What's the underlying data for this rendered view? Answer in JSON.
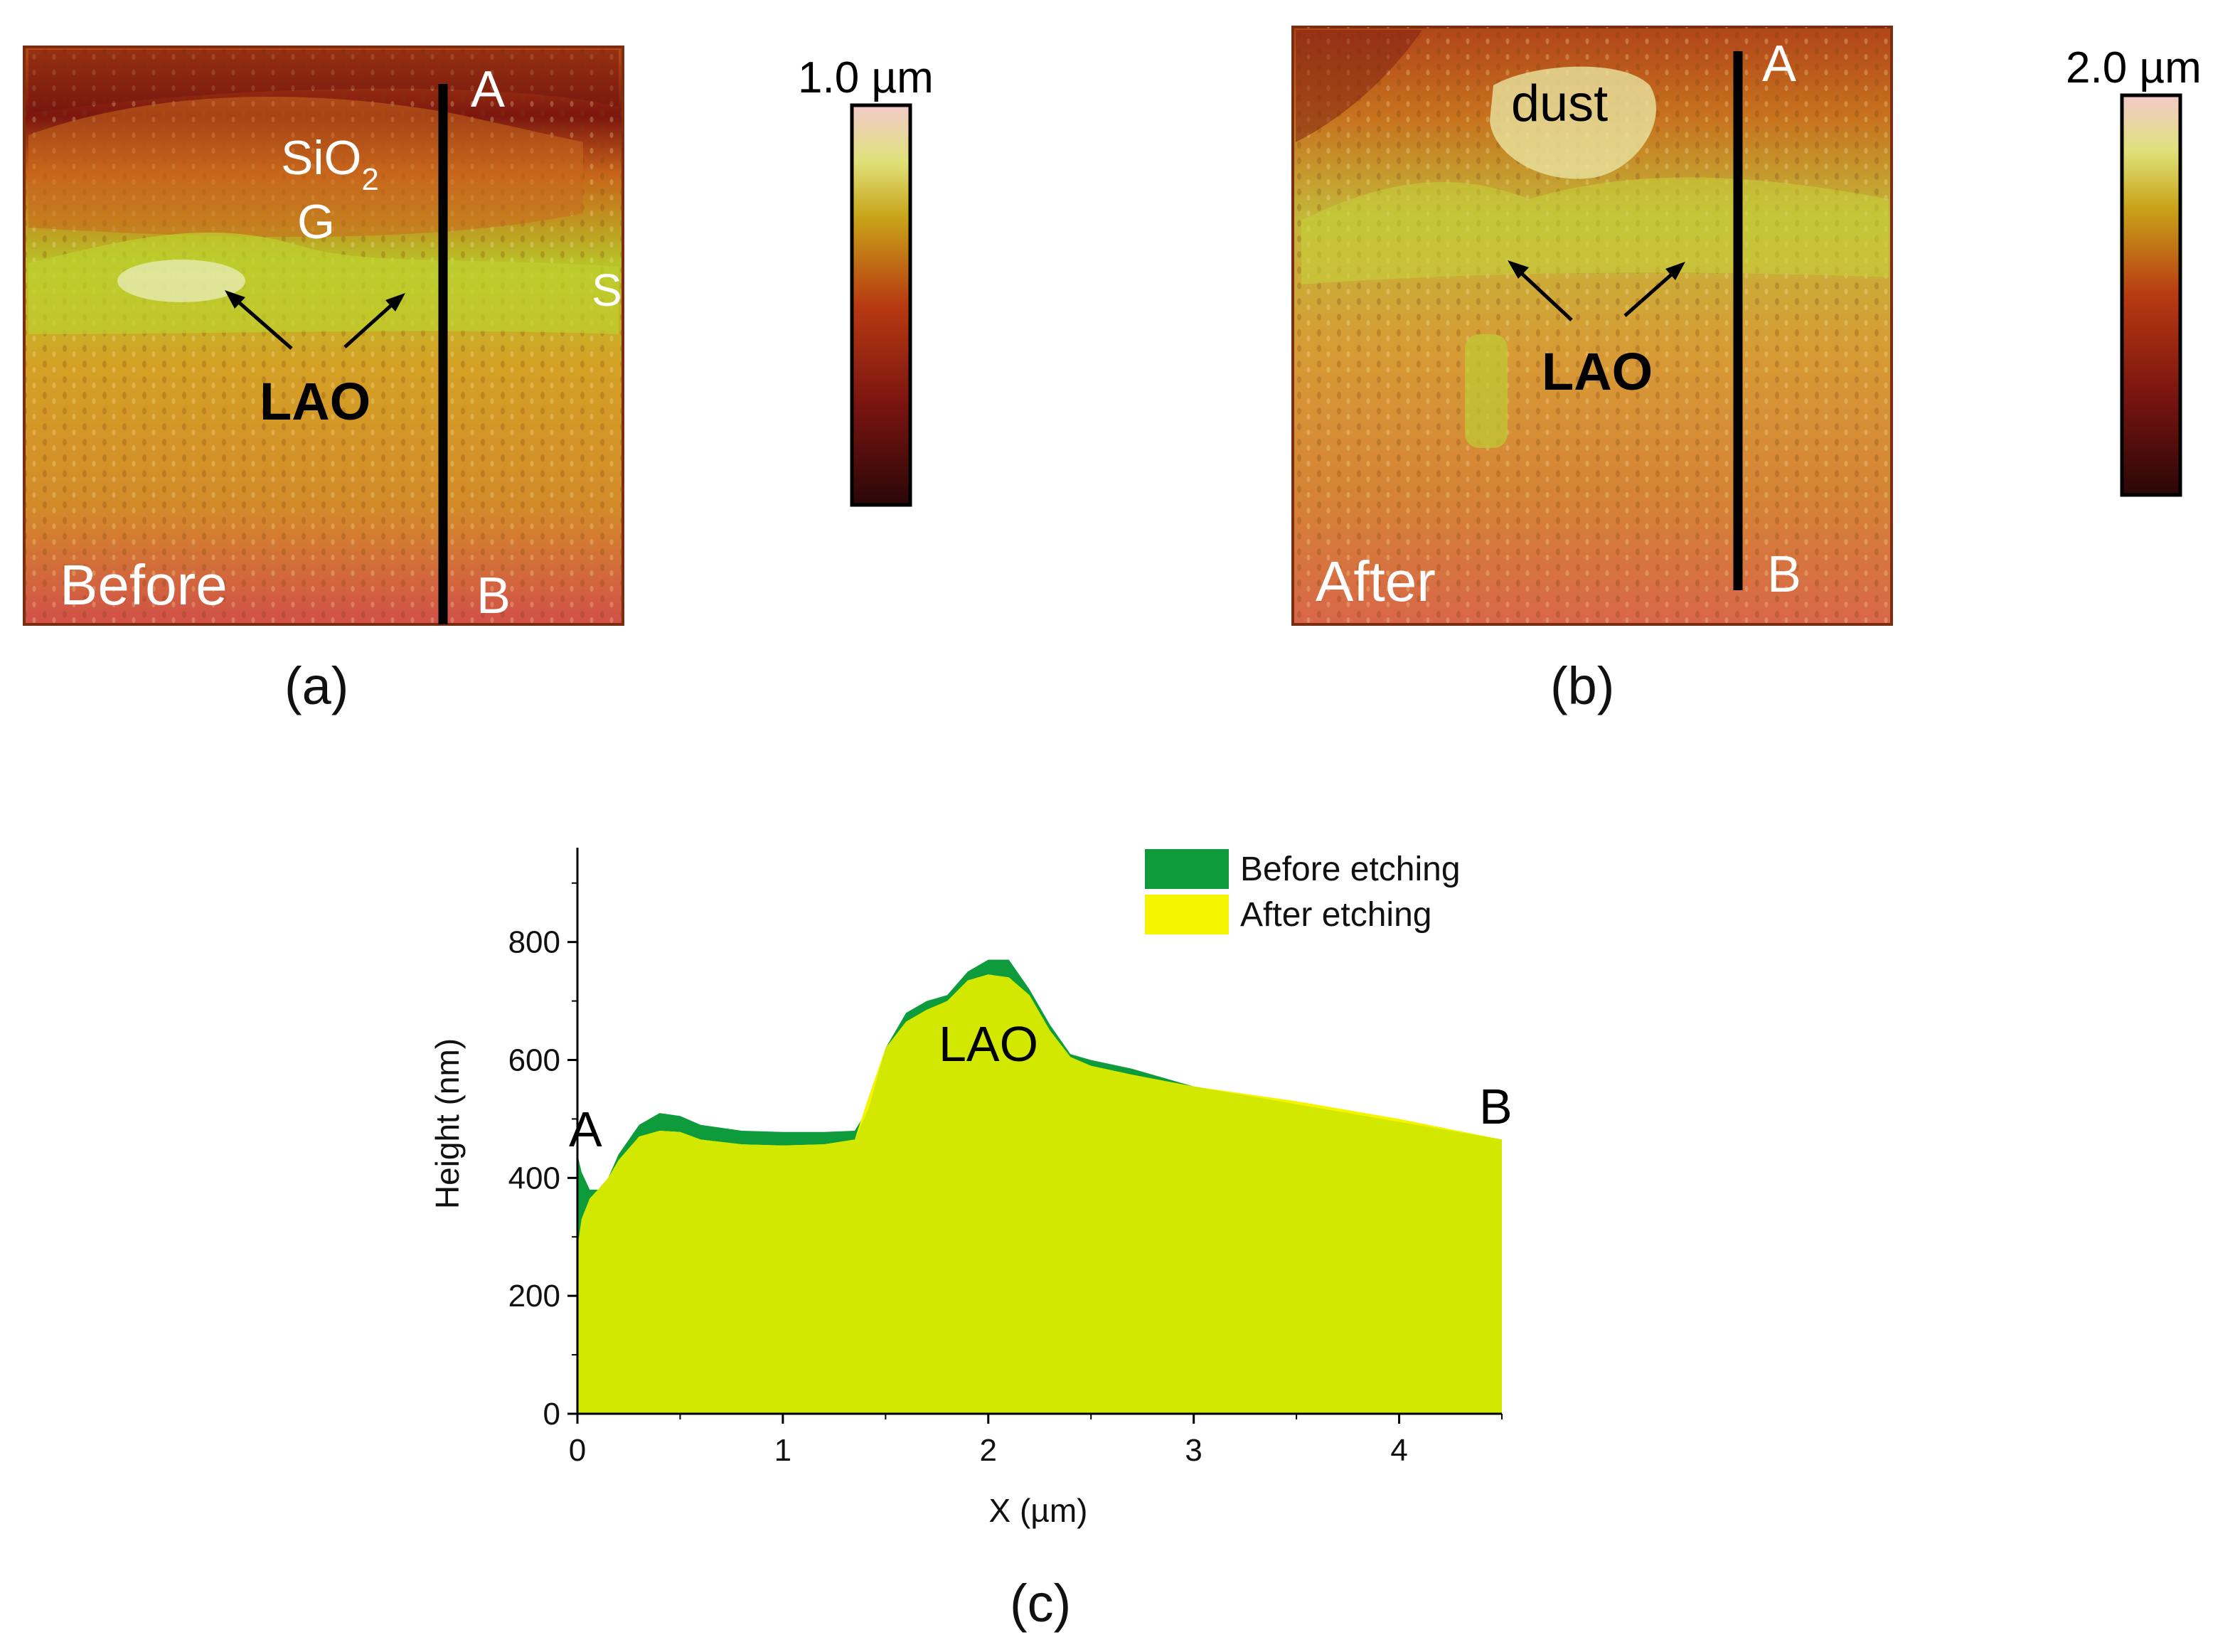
{
  "panel_a": {
    "caption": "(a)",
    "label_before": "Before",
    "point_a": "A",
    "point_b": "B",
    "label_sio2_main": "SiO",
    "label_sio2_sub": "2",
    "label_g": "G",
    "label_s": "S",
    "label_lao": "LAO",
    "colorbar_max": "1.0 µm"
  },
  "panel_b": {
    "caption": "(b)",
    "label_after": "After",
    "point_a": "A",
    "point_b": "B",
    "label_dust": "dust",
    "label_lao": "LAO",
    "colorbar_max": "2.0 µm"
  },
  "colors": {
    "before_series": "#0e9b3c",
    "after_series": "#f5f500",
    "overlap_fill": "#d2e800",
    "colormap": [
      "#2a0707",
      "#7a1410",
      "#b83a12",
      "#c9a419",
      "#dfe17a",
      "#f3caca"
    ]
  },
  "chart_data": {
    "type": "area",
    "caption": "(c)",
    "xlabel": "X (µm)",
    "ylabel": "Height (nm)",
    "xlim": [
      0,
      4.5
    ],
    "ylim": [
      0,
      960
    ],
    "xticks": [
      0,
      1,
      2,
      3,
      4
    ],
    "yticks": [
      0,
      200,
      400,
      600,
      800
    ],
    "annotations": {
      "start": "A",
      "end": "B",
      "peak": "LAO"
    },
    "series": [
      {
        "name": "Before etching",
        "x": [
          0,
          0.02,
          0.06,
          0.1,
          0.15,
          0.2,
          0.3,
          0.4,
          0.5,
          0.6,
          0.8,
          1.0,
          1.2,
          1.35,
          1.42,
          1.5,
          1.6,
          1.7,
          1.8,
          1.9,
          2.0,
          2.1,
          2.2,
          2.3,
          2.4,
          2.5,
          2.7,
          3.0,
          3.5,
          4.0,
          4.5
        ],
        "values": [
          440,
          410,
          380,
          380,
          400,
          440,
          490,
          510,
          505,
          490,
          480,
          478,
          478,
          480,
          520,
          620,
          680,
          700,
          710,
          750,
          770,
          770,
          720,
          660,
          610,
          600,
          585,
          555,
          525,
          495,
          465
        ]
      },
      {
        "name": "After etching",
        "x": [
          0,
          0.02,
          0.06,
          0.1,
          0.15,
          0.2,
          0.3,
          0.4,
          0.5,
          0.6,
          0.8,
          1.0,
          1.2,
          1.35,
          1.42,
          1.5,
          1.6,
          1.7,
          1.8,
          1.9,
          2.0,
          2.1,
          2.2,
          2.3,
          2.4,
          2.5,
          2.7,
          3.0,
          3.5,
          4.0,
          4.5
        ],
        "values": [
          280,
          330,
          365,
          380,
          400,
          430,
          470,
          480,
          478,
          465,
          457,
          455,
          457,
          465,
          540,
          620,
          665,
          685,
          700,
          735,
          745,
          740,
          710,
          650,
          605,
          590,
          575,
          555,
          530,
          500,
          465
        ]
      }
    ]
  }
}
